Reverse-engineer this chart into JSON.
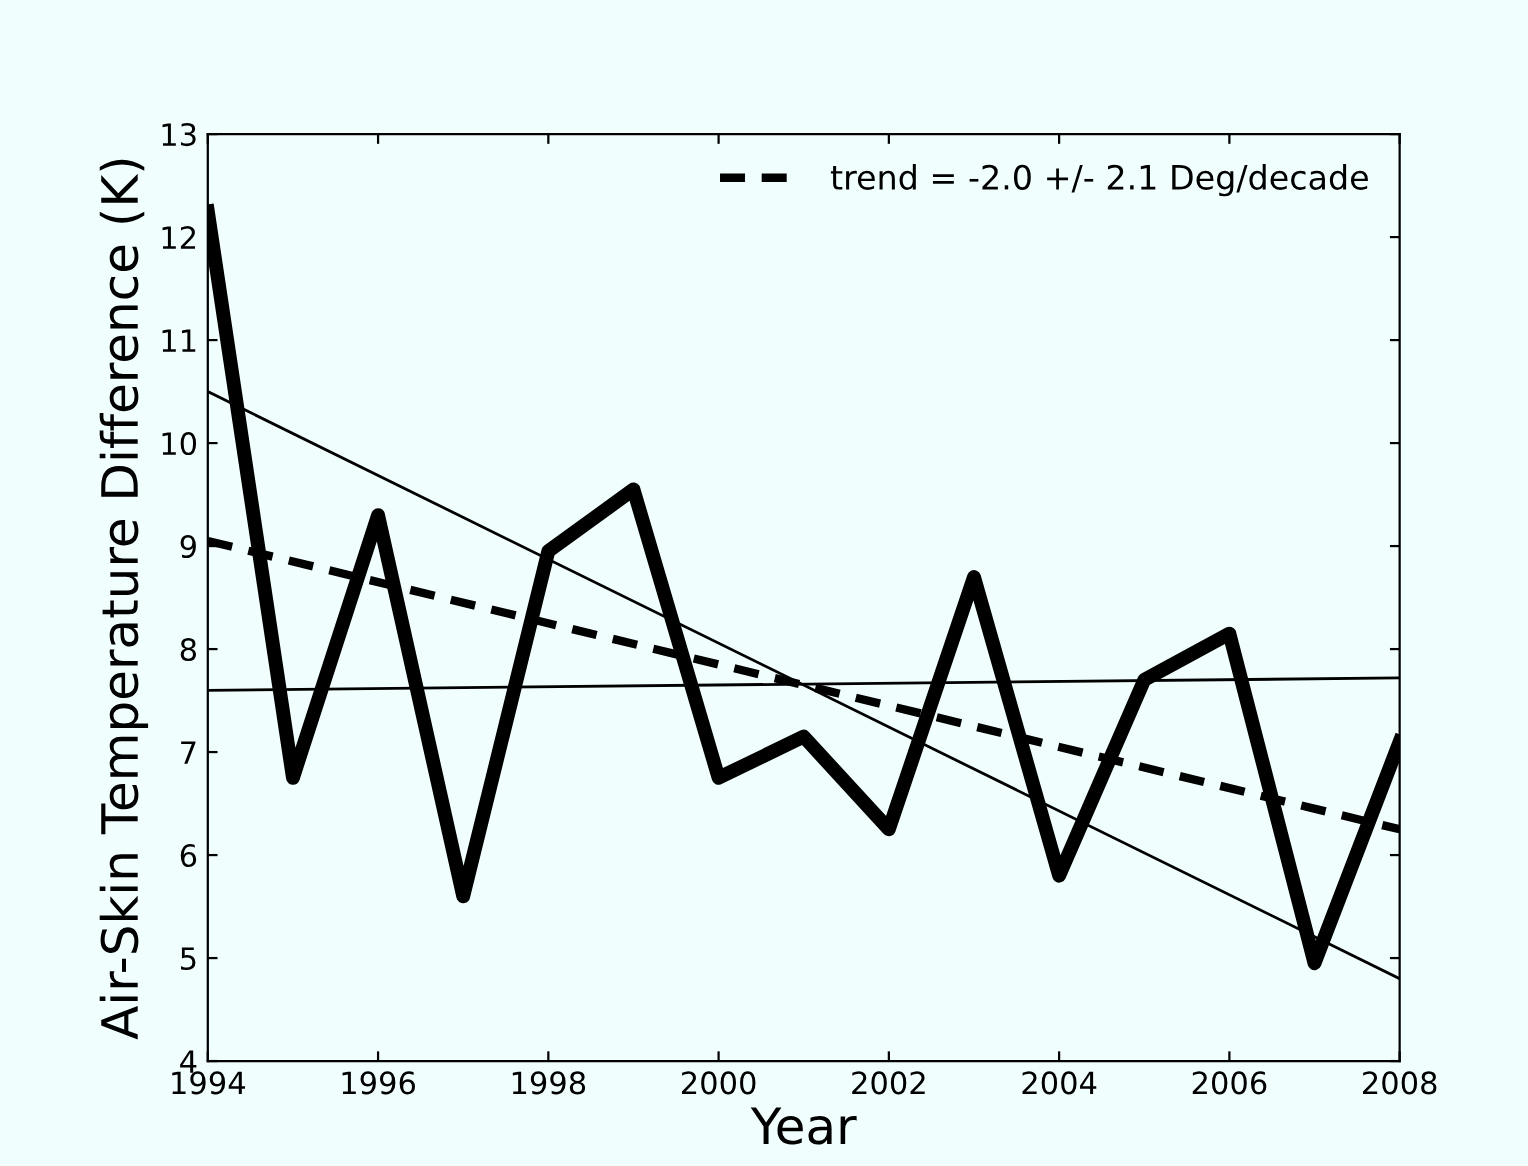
{
  "chart_data": {
    "type": "line",
    "xlabel": "Year",
    "ylabel": "Air-Skin Temperature Difference (K)",
    "xlim": [
      1994,
      2008
    ],
    "ylim": [
      4,
      13
    ],
    "xticks": [
      1994,
      1996,
      1998,
      2000,
      2002,
      2004,
      2006,
      2008
    ],
    "yticks": [
      4,
      5,
      6,
      7,
      8,
      9,
      10,
      11,
      12,
      13
    ],
    "grid": false,
    "legend": "top right",
    "marker": "none",
    "series": [
      {
        "color": "#000000",
        "line_style": "solid",
        "x": [
          1994,
          1995,
          1996,
          1997,
          1998,
          1999,
          2000,
          2001,
          2002,
          2003,
          2004,
          2005,
          2006,
          2007,
          2008
        ],
        "values": [
          12.25,
          6.75,
          9.3,
          5.6,
          8.95,
          9.55,
          6.75,
          7.15,
          6.25,
          8.7,
          5.8,
          7.7,
          8.15,
          4.95,
          7.1
        ]
      },
      {
        "name": "trend = -2.0 +/- 2.1 Deg/decade",
        "color": "#000000",
        "line_style": "dashed",
        "x": [
          1994,
          2008
        ],
        "values": [
          9.05,
          6.25
        ]
      },
      {
        "color": "#000000",
        "line_style": "solid",
        "x": [
          1994,
          2008
        ],
        "values": [
          10.5,
          4.8
        ]
      },
      {
        "color": "#000000",
        "line_style": "solid",
        "x": [
          1994,
          2008
        ],
        "values": [
          7.6,
          7.72
        ]
      }
    ]
  }
}
